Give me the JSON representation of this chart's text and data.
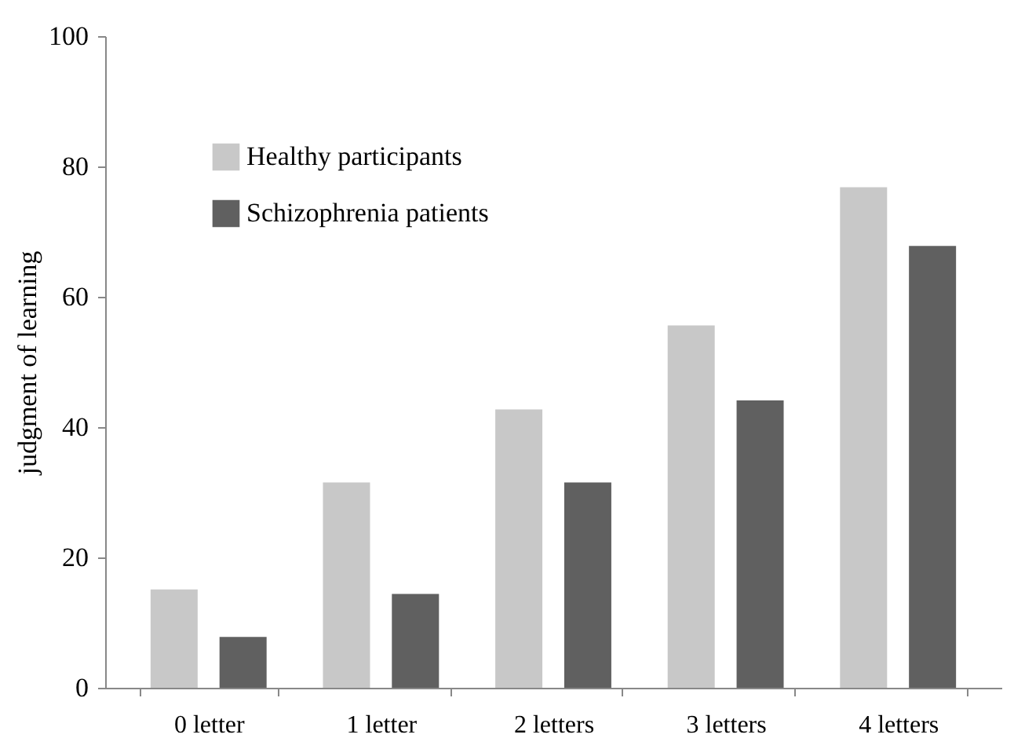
{
  "chart_data": {
    "type": "bar",
    "ylabel": "judgment of learning",
    "categories": [
      "0 letter",
      "1 letter",
      "2 letters",
      "3 letters",
      "4 letters"
    ],
    "series": [
      {
        "name": "Healthy participants",
        "color": "#c8c8c8",
        "values": [
          15.1,
          31.5,
          42.7,
          55.6,
          76.8
        ]
      },
      {
        "name": "Schizophrenia patients",
        "color": "#606060",
        "values": [
          7.8,
          14.4,
          31.5,
          44.1,
          67.8
        ]
      }
    ],
    "ylim": [
      0,
      100
    ],
    "yticks": [
      0,
      20,
      40,
      60,
      80,
      100
    ],
    "grid": false,
    "legend": "top left"
  }
}
